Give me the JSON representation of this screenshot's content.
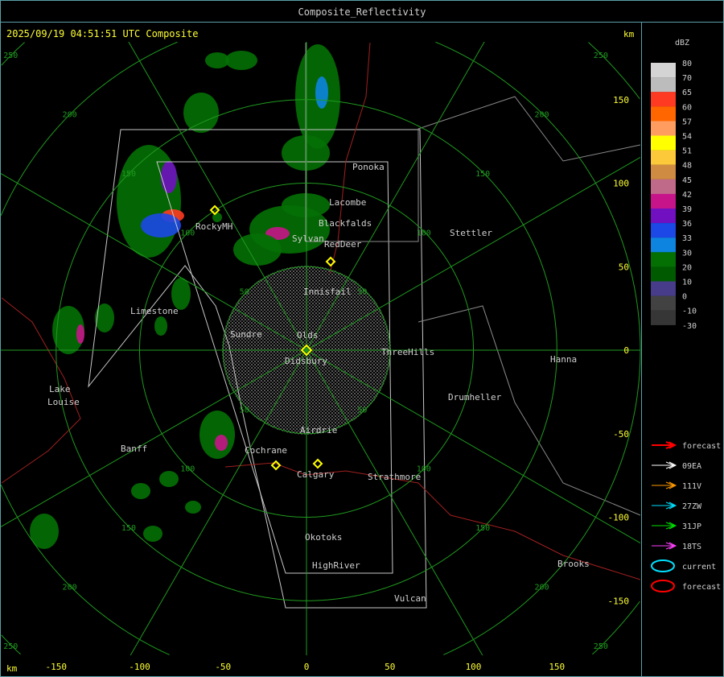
{
  "window": {
    "title": "Composite_Reflectivity"
  },
  "header": {
    "timestamp_label": "2025/09/19 04:51:51 UTC Composite",
    "unit_top_right": "km",
    "unit_bottom_left": "km"
  },
  "colors": {
    "frame": "#5aa0a8",
    "header_text": "#ffff33",
    "ring": "#1f9a1f",
    "boundary": "#8a8a8a",
    "river": "#a02020",
    "label": "#d0d0d0"
  },
  "axes": {
    "x_ticks": [
      "-150",
      "-100",
      "-50",
      "0",
      "50",
      "100",
      "150"
    ],
    "y_ticks": [
      "150",
      "100",
      "50",
      "0",
      "-50",
      "-100",
      "-150"
    ],
    "range_rings_km": [
      50,
      100,
      150,
      200,
      250
    ]
  },
  "places": [
    "Ponoka",
    "Lacombe",
    "Blackfalds",
    "RockyMH",
    "Sylvan",
    "RedDeer",
    "Stettler",
    "Innisfail",
    "Limestone",
    "Sundre",
    "Olds",
    "ThreeHills",
    "Didsbury",
    "Hanna",
    "Lake",
    "Louise",
    "Drumheller",
    "Airdrie",
    "Banff",
    "Cochrane",
    "Calgary",
    "Strathmore",
    "Okotoks",
    "HighRiver",
    "Brooks",
    "Vulcan"
  ],
  "legend": {
    "title": "dBZ",
    "scale": [
      {
        "label": "80",
        "color": "#d4d4d4"
      },
      {
        "label": "70",
        "color": "#bcbcbc"
      },
      {
        "label": "65",
        "color": "#ff3a22"
      },
      {
        "label": "60",
        "color": "#ff6600"
      },
      {
        "label": "57",
        "color": "#ff9c60"
      },
      {
        "label": "54",
        "color": "#ffff00"
      },
      {
        "label": "51",
        "color": "#fcc93a"
      },
      {
        "label": "48",
        "color": "#d08b42"
      },
      {
        "label": "45",
        "color": "#c06a8a"
      },
      {
        "label": "42",
        "color": "#c8148a"
      },
      {
        "label": "39",
        "color": "#7010c0"
      },
      {
        "label": "36",
        "color": "#1c48e8"
      },
      {
        "label": "33",
        "color": "#0c84e0"
      },
      {
        "label": "30",
        "color": "#047004"
      },
      {
        "label": "20",
        "color": "#005a00"
      },
      {
        "label": "10",
        "color": "#463c8a"
      },
      {
        "label": "0",
        "color": "#424242"
      },
      {
        "label": "-10",
        "color": "#363636"
      },
      {
        "label": "-30",
        "color": ""
      }
    ],
    "tracks": [
      {
        "label": "forecast",
        "color": "#ff0000",
        "icon": "arrow-icon"
      },
      {
        "label": "09EA",
        "color": "#ffffff",
        "icon": "arrow-icon"
      },
      {
        "label": "111V",
        "color": "#ff9a00",
        "icon": "arrow-icon"
      },
      {
        "label": "27ZW",
        "color": "#00e0ff",
        "icon": "arrow-icon"
      },
      {
        "label": "31JP",
        "color": "#00e000",
        "icon": "arrow-icon"
      },
      {
        "label": "18TS",
        "color": "#ff40ff",
        "icon": "arrow-icon"
      },
      {
        "label": "current",
        "color": "#00e0ff",
        "icon": "ellipse-icon"
      },
      {
        "label": "forecast",
        "color": "#ff0000",
        "icon": "ellipse-icon"
      }
    ]
  }
}
